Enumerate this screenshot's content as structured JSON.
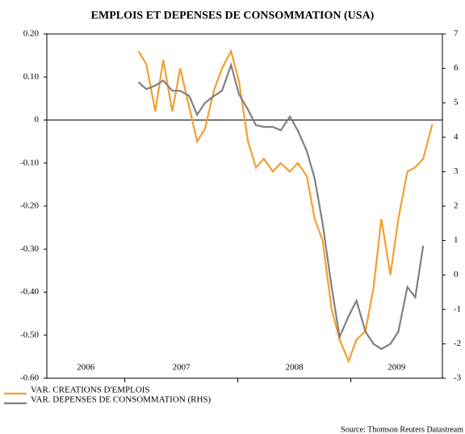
{
  "chart_data": {
    "type": "line",
    "title": "EMPLOIS ET DEPENSES DE CONSOMMATION (USA)",
    "source": "Source: Thomson Reuters Datastream",
    "xlim": [
      2006.31,
      2009.81
    ],
    "xticks": [
      2006,
      2007,
      2008,
      2009
    ],
    "ylim": [
      -0.6,
      0.2
    ],
    "yticks": [
      {
        "value": 0.2,
        "label": "0.20"
      },
      {
        "value": 0.1,
        "label": "0.10"
      },
      0,
      {
        "value": -0.1,
        "label": "-0.10"
      },
      {
        "value": -0.2,
        "label": "-0.20"
      },
      {
        "value": -0.3,
        "label": "-0.30"
      },
      {
        "value": -0.4,
        "label": "-0.40"
      },
      {
        "value": -0.5,
        "label": "-0.50"
      },
      {
        "value": -0.6,
        "label": "-0.60"
      }
    ],
    "y2lim": [
      -3,
      7
    ],
    "y2ticks": [
      7,
      6,
      5,
      4,
      3,
      2,
      1,
      0,
      -1,
      -2,
      -3
    ],
    "series": [
      {
        "name": "VAR. CREATIONS D'EMPLOIS",
        "color": "#f0a030",
        "x": [
          2007.12,
          2007.19,
          2007.27,
          2007.34,
          2007.42,
          2007.49,
          2007.57,
          2007.64,
          2007.71,
          2007.79,
          2007.86,
          2007.94,
          2008.01,
          2008.09,
          2008.16,
          2008.23,
          2008.31,
          2008.38,
          2008.46,
          2008.53,
          2008.61,
          2008.68,
          2008.75,
          2008.83,
          2008.9,
          2008.98,
          2009.05,
          2009.13,
          2009.2,
          2009.27,
          2009.35,
          2009.42,
          2009.5,
          2009.57,
          2009.64,
          2009.72
        ],
        "values": [
          0.16,
          0.13,
          0.02,
          0.14,
          0.02,
          0.12,
          0.03,
          -0.05,
          -0.02,
          0.07,
          0.12,
          0.16,
          0.09,
          -0.05,
          -0.11,
          -0.09,
          -0.12,
          -0.1,
          -0.12,
          -0.1,
          -0.13,
          -0.23,
          -0.28,
          -0.44,
          -0.51,
          -0.56,
          -0.51,
          -0.49,
          -0.39,
          -0.23,
          -0.36,
          -0.23,
          -0.12,
          -0.11,
          -0.09,
          -0.01
        ]
      },
      {
        "name": "VAR. DEPENSES DE CONSOMMATION (RHS)",
        "color": "#808080",
        "axis": "y2",
        "x": [
          2007.12,
          2007.19,
          2007.27,
          2007.34,
          2007.42,
          2007.49,
          2007.57,
          2007.64,
          2007.71,
          2007.79,
          2007.86,
          2007.94,
          2008.01,
          2008.09,
          2008.16,
          2008.23,
          2008.31,
          2008.38,
          2008.46,
          2008.53,
          2008.61,
          2008.68,
          2008.75,
          2008.83,
          2008.9,
          2008.98,
          2009.05,
          2009.13,
          2009.2,
          2009.27,
          2009.35,
          2009.42,
          2009.5,
          2009.57,
          2009.64
        ],
        "values": [
          5.6,
          5.4,
          5.5,
          5.65,
          5.35,
          5.35,
          5.2,
          4.65,
          5.0,
          5.2,
          5.35,
          6.1,
          5.25,
          4.8,
          4.35,
          4.3,
          4.3,
          4.2,
          4.6,
          4.2,
          3.6,
          2.8,
          1.5,
          -0.35,
          -1.8,
          -1.2,
          -0.75,
          -1.65,
          -2.0,
          -2.15,
          -2.0,
          -1.65,
          -0.35,
          -0.65,
          0.85
        ]
      }
    ]
  }
}
